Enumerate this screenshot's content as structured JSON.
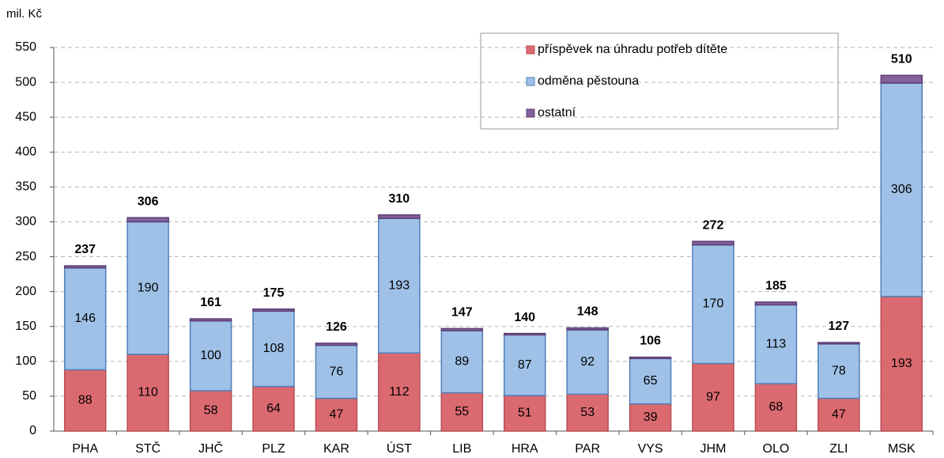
{
  "chart_data": {
    "type": "stacked_bar",
    "y_label": "mil. Kč",
    "categories": [
      "PHA",
      "STČ",
      "JHČ",
      "PLZ",
      "KAR",
      "ÚST",
      "LIB",
      "HRA",
      "PAR",
      "VYS",
      "JHM",
      "OLO",
      "ZLI",
      "MSK"
    ],
    "series": [
      {
        "name": "příspěvek na úhradu potřeb dítěte",
        "color": "#db6a70",
        "stroke": "#b94c54",
        "values": [
          88,
          110,
          58,
          64,
          47,
          112,
          55,
          51,
          53,
          39,
          97,
          68,
          47,
          193
        ]
      },
      {
        "name": "odměna pěstouna",
        "color": "#9fc1e8",
        "stroke": "#4f7fb8",
        "values": [
          146,
          190,
          100,
          108,
          76,
          193,
          89,
          87,
          92,
          65,
          170,
          113,
          78,
          306
        ]
      },
      {
        "name": "ostatní",
        "color": "#82609a",
        "stroke": "#5d3f74",
        "values": [
          3,
          6,
          3,
          3,
          3,
          5,
          3,
          2,
          3,
          2,
          5,
          4,
          2,
          11
        ]
      }
    ],
    "totals": [
      237,
      306,
      161,
      175,
      126,
      310,
      147,
      140,
      148,
      106,
      272,
      185,
      127,
      510
    ],
    "ylim": [
      0,
      550
    ],
    "yticks": [
      0,
      50,
      100,
      150,
      200,
      250,
      300,
      350,
      400,
      450,
      500,
      550
    ],
    "grid": true,
    "legend": "top-right"
  }
}
